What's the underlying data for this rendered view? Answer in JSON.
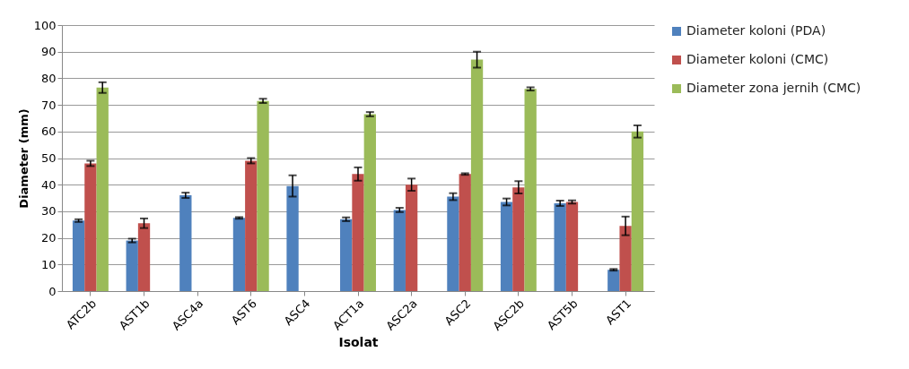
{
  "chart_data": {
    "type": "bar",
    "xlabel": "Isolat",
    "ylabel": "Diameter (mm)",
    "categories": [
      "ATC2b",
      "AST1b",
      "ASC4a",
      "AST6",
      "ASC4",
      "ACT1a",
      "ASC2a",
      "ASC2",
      "ASC2b",
      "AST5b",
      "AST1"
    ],
    "series": [
      {
        "name": "Diameter koloni (PDA)",
        "color": "#4f81bd",
        "values": [
          26.5,
          19,
          36,
          27.5,
          39.5,
          27,
          30.5,
          35.5,
          33.5,
          33,
          8
        ],
        "errors": [
          0.5,
          0.7,
          1,
          0.3,
          4,
          0.7,
          0.8,
          1.3,
          1.3,
          1,
          0.3
        ]
      },
      {
        "name": "Diameter koloni (CMC)",
        "color": "#c0504d",
        "values": [
          48,
          25.5,
          null,
          49,
          null,
          44,
          40,
          44,
          39,
          33.5,
          24.5
        ],
        "errors": [
          1,
          1.8,
          null,
          1,
          null,
          2.5,
          2.3,
          0.3,
          2.3,
          0.6,
          3.5
        ]
      },
      {
        "name": "Diameter zona jernih (CMC)",
        "color": "#9bbb59",
        "values": [
          76.5,
          null,
          null,
          71.5,
          null,
          66.5,
          null,
          87,
          76,
          null,
          60
        ],
        "errors": [
          2,
          null,
          null,
          0.8,
          null,
          0.8,
          null,
          3,
          0.6,
          null,
          2.3
        ]
      }
    ],
    "ylim": [
      0,
      100
    ],
    "yticks": [
      0,
      10,
      20,
      30,
      40,
      50,
      60,
      70,
      80,
      90,
      100
    ],
    "grid": "y",
    "legend": "right"
  }
}
